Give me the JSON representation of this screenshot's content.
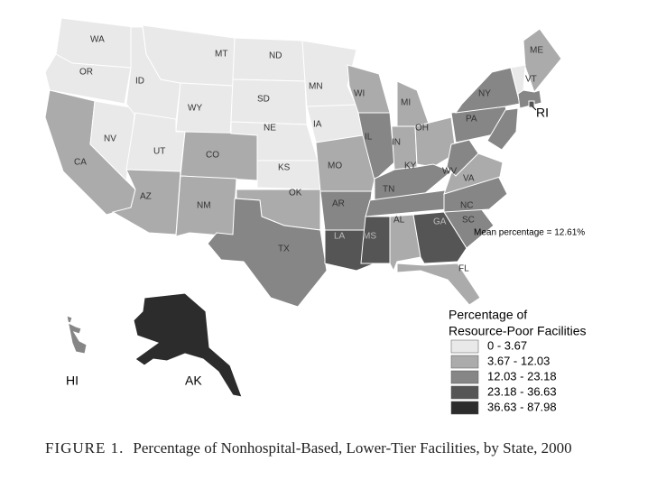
{
  "map": {
    "type": "choropleth",
    "states": [
      {
        "label": "WA",
        "bin": 0
      },
      {
        "label": "OR",
        "bin": 0
      },
      {
        "label": "CA",
        "bin": 1
      },
      {
        "label": "NV",
        "bin": 0
      },
      {
        "label": "ID",
        "bin": 0
      },
      {
        "label": "MT",
        "bin": 0
      },
      {
        "label": "WY",
        "bin": 0
      },
      {
        "label": "UT",
        "bin": 0
      },
      {
        "label": "AZ",
        "bin": 1
      },
      {
        "label": "CO",
        "bin": 1
      },
      {
        "label": "NM",
        "bin": 1
      },
      {
        "label": "ND",
        "bin": 0
      },
      {
        "label": "SD",
        "bin": 0
      },
      {
        "label": "NE",
        "bin": 0
      },
      {
        "label": "KS",
        "bin": 0
      },
      {
        "label": "OK",
        "bin": 1
      },
      {
        "label": "TX",
        "bin": 2
      },
      {
        "label": "MN",
        "bin": 0
      },
      {
        "label": "IA",
        "bin": 0
      },
      {
        "label": "MO",
        "bin": 1
      },
      {
        "label": "AR",
        "bin": 2
      },
      {
        "label": "LA",
        "bin": 3
      },
      {
        "label": "WI",
        "bin": 1
      },
      {
        "label": "IL",
        "bin": 2
      },
      {
        "label": "MI",
        "bin": 1
      },
      {
        "label": "IN",
        "bin": 1
      },
      {
        "label": "OH",
        "bin": 1
      },
      {
        "label": "KY",
        "bin": 2
      },
      {
        "label": "TN",
        "bin": 2
      },
      {
        "label": "MS",
        "bin": 3
      },
      {
        "label": "AL",
        "bin": 1
      },
      {
        "label": "GA",
        "bin": 3
      },
      {
        "label": "FL",
        "bin": 1
      },
      {
        "label": "SC",
        "bin": 2
      },
      {
        "label": "NC",
        "bin": 2
      },
      {
        "label": "VA",
        "bin": 1
      },
      {
        "label": "WV",
        "bin": 2
      },
      {
        "label": "PA",
        "bin": 2
      },
      {
        "label": "NY",
        "bin": 2
      },
      {
        "label": "ME",
        "bin": 1
      },
      {
        "label": "VT",
        "bin": 0
      },
      {
        "label": null,
        "bin": 2
      },
      {
        "label": null,
        "bin": 2
      },
      {
        "label": "RI",
        "bin": 3
      },
      {
        "label": "HI",
        "bin": 2
      },
      {
        "label": "AK",
        "bin": 4
      }
    ],
    "annotation": "Mean percentage = 12.61%",
    "legend": {
      "title_lines": [
        "Percentage of",
        "Resource-Poor Facilities"
      ],
      "bins": [
        {
          "label": "0 - 3.67",
          "color": "#e9e9e9"
        },
        {
          "label": "3.67 - 12.03",
          "color": "#ababab"
        },
        {
          "label": "12.03 - 23.18",
          "color": "#868686"
        },
        {
          "label": "23.18 - 36.63",
          "color": "#555555"
        },
        {
          "label": "36.63 - 87.98",
          "color": "#2c2c2c"
        }
      ]
    },
    "caption": {
      "label": "FIGURE 1.",
      "text": "Percentage of Nonhospital-Based, Lower-Tier Facilities, by State, 2000"
    }
  }
}
